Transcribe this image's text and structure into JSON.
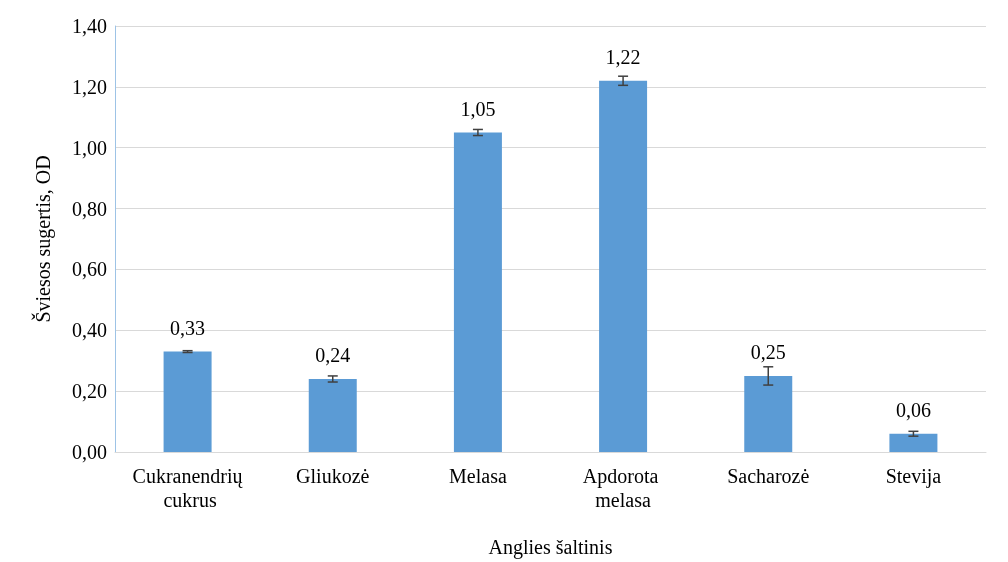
{
  "chart_data": {
    "type": "bar",
    "xlabel": "Anglies šaltinis",
    "ylabel": "Šviesos sugertis, OD",
    "categories": [
      "Cukranendrių cukrus",
      "Gliukozė",
      "Melasa",
      "Apdorota melasa",
      "Sacharozė",
      "Stevija"
    ],
    "values": [
      0.33,
      0.24,
      1.05,
      1.22,
      0.25,
      0.06
    ],
    "errors": [
      0.003,
      0.01,
      0.01,
      0.015,
      0.03,
      0.008
    ],
    "value_labels": [
      "0,33",
      "0,24",
      "1,05",
      "1,22",
      "0,25",
      "0,06"
    ],
    "color": "#5b9bd5",
    "ylim": [
      0,
      1.4
    ],
    "yticks": [
      {
        "value": 0,
        "label": "0,00"
      },
      {
        "value": 0.2,
        "label": "0,20"
      },
      {
        "value": 0.4,
        "label": "0,40"
      },
      {
        "value": 0.6,
        "label": "0,60"
      },
      {
        "value": 0.8,
        "label": "0,80"
      },
      {
        "value": 1.0,
        "label": "1,00"
      },
      {
        "value": 1.2,
        "label": "1,20"
      },
      {
        "value": 1.4,
        "label": "1,40"
      }
    ],
    "grid": "y"
  }
}
